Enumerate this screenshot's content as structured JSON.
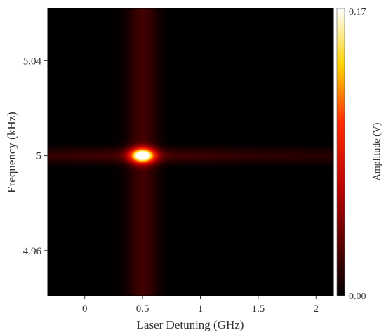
{
  "chart_data": {
    "type": "heatmap",
    "title": "",
    "xlabel": "Laser Detuning (GHz)",
    "ylabel": "Frequency (kHz)",
    "xlim": [
      -0.32,
      2.15
    ],
    "ylim": [
      4.941,
      5.062
    ],
    "x_ticks": [
      {
        "value": 0,
        "label": "0"
      },
      {
        "value": 0.5,
        "label": "0.5"
      },
      {
        "value": 1,
        "label": "1"
      },
      {
        "value": 1.5,
        "label": "1.5"
      },
      {
        "value": 2,
        "label": "2"
      }
    ],
    "y_ticks": [
      {
        "value": 5.04,
        "label": "5.04"
      },
      {
        "value": 5.0,
        "label": "5"
      },
      {
        "value": 4.96,
        "label": "4.96"
      }
    ],
    "peak": {
      "x": 0.5,
      "y": 5.0,
      "amplitude": 0.17
    },
    "colorbar": {
      "label": "Amplitude (V)",
      "min": 0.0,
      "max": 0.17,
      "min_label": "0.00",
      "max_label": "0.17",
      "colormap": "hot"
    },
    "grid": false
  }
}
